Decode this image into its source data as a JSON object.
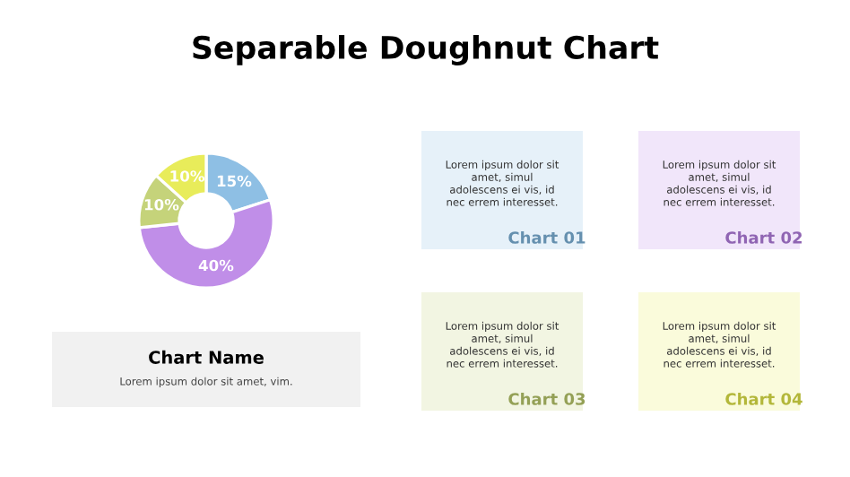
{
  "chart_data": [
    {
      "type": "donut",
      "title": "Separable Doughnut Chart",
      "categories": [
        null,
        null,
        null,
        null
      ],
      "values": [
        15,
        40,
        10,
        10
      ],
      "value_labels": [
        "15%",
        "40%",
        "10%",
        "10%"
      ],
      "colors": [
        "#8ebfe4",
        "#c08ee8",
        "#c5d37a",
        "#e8ec5a"
      ]
    },
    {
      "type": "other",
      "title": "Chart Name",
      "subtitle": "Lorem ipsum dolor sit amet, vim."
    },
    {
      "type": "other",
      "categories": [
        "Chart 01",
        "Chart 02",
        "Chart 03",
        "Chart 04"
      ],
      "colors": [
        "#e6f1f9",
        "#f1e6fa",
        "#f2f5e2",
        "#fafbdb"
      ],
      "annotations": [
        "Lorem ipsum dolor sit\namet, simul\nadolescens ei vis, id\nnec errem interesset.",
        "Lorem ipsum dolor sit\namet, simul\nadolescens ei vis, id\nnec errem interesset.",
        "Lorem ipsum dolor sit\namet, simul\nadolescens ei vis, id\nnec errem interesset.",
        "Lorem ipsum dolor sit\namet, simul\nadolescens ei vis, id\nnec errem interesset."
      ]
    }
  ]
}
